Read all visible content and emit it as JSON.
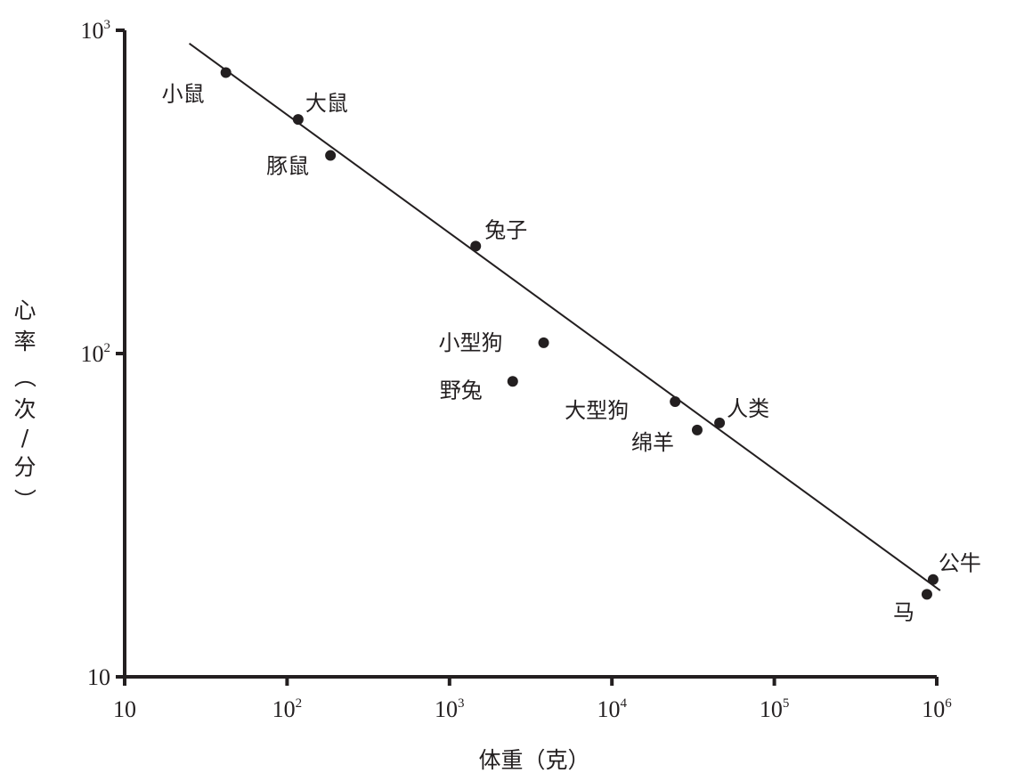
{
  "chart_data": {
    "type": "scatter",
    "title": "",
    "xlabel": "体重（克）",
    "ylabel": "心率（次/分）",
    "xscale": "log",
    "yscale": "log",
    "xlim": [
      10,
      1000000
    ],
    "ylim": [
      10,
      1000
    ],
    "x_ticks": [
      {
        "base": "10",
        "exp": ""
      },
      {
        "base": "10",
        "exp": "2"
      },
      {
        "base": "10",
        "exp": "3"
      },
      {
        "base": "10",
        "exp": "4"
      },
      {
        "base": "10",
        "exp": "5"
      },
      {
        "base": "10",
        "exp": "6"
      }
    ],
    "y_ticks": [
      {
        "base": "10",
        "exp": ""
      },
      {
        "base": "10",
        "exp": "2"
      },
      {
        "base": "10",
        "exp": "3"
      }
    ],
    "grid": false,
    "legend": null,
    "points": [
      {
        "label": "小鼠",
        "x": 42,
        "y": 740
      },
      {
        "label": "大鼠",
        "x": 117,
        "y": 530
      },
      {
        "label": "豚鼠",
        "x": 185,
        "y": 410
      },
      {
        "label": "兔子",
        "x": 1450,
        "y": 215
      },
      {
        "label": "小型狗",
        "x": 3800,
        "y": 108
      },
      {
        "label": "野兔",
        "x": 2450,
        "y": 82
      },
      {
        "label": "大型狗",
        "x": 24500,
        "y": 71
      },
      {
        "label": "绵羊",
        "x": 33500,
        "y": 58
      },
      {
        "label": "人类",
        "x": 46000,
        "y": 61
      },
      {
        "label": "公牛",
        "x": 950000,
        "y": 20
      },
      {
        "label": "马",
        "x": 870000,
        "y": 18
      }
    ],
    "fit_line": {
      "x": [
        25,
        1050000
      ],
      "y": [
        910,
        18.5
      ]
    },
    "colors": {
      "ink": "#231f20",
      "background": "#ffffff"
    }
  },
  "labels": {
    "xlabel": "体重（克）",
    "ylabel_chars": [
      "心",
      "率",
      "（",
      "次",
      "/",
      "分",
      "）"
    ]
  }
}
